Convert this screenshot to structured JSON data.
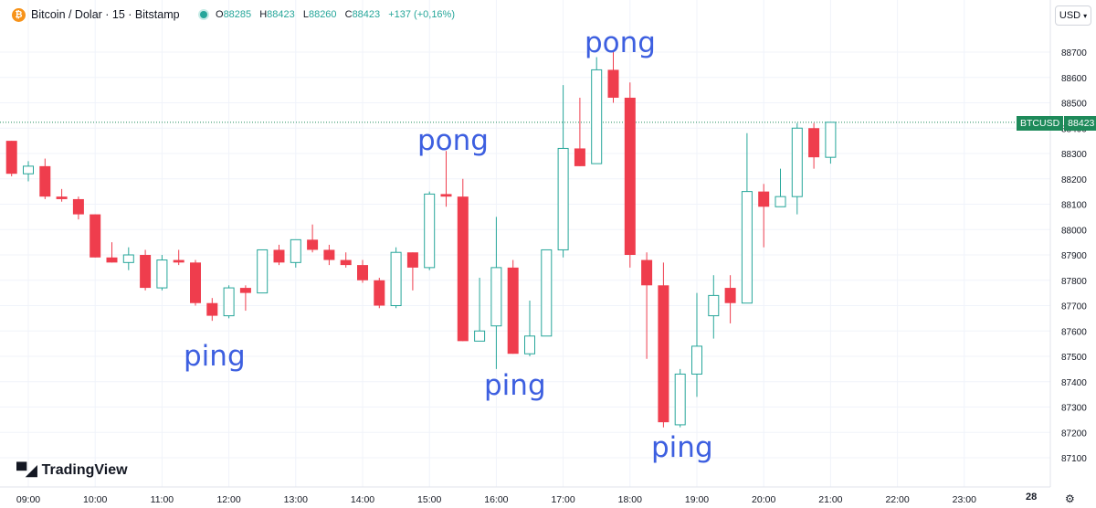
{
  "header": {
    "symbol": "Bitcoin / Dolar · 15 · Bitstamp",
    "logo_glyph": "₿",
    "ohlc": [
      {
        "key": "O",
        "value": "88285"
      },
      {
        "key": "H",
        "value": "88423"
      },
      {
        "key": "L",
        "value": "88260"
      },
      {
        "key": "C",
        "value": "88423"
      }
    ],
    "change": "+137 (+0,16%)"
  },
  "currency_button": "USD",
  "price_tag": {
    "symbol": "BTCUSD",
    "price": "88423"
  },
  "brand": "TradingView",
  "day_label": "28",
  "colors": {
    "up": "#26a69a",
    "down": "#ef3d4d",
    "annotation": "#3d5fe0",
    "price_line": "#1e8a5a"
  },
  "annotations": [
    {
      "text": "pong",
      "x": "15:15",
      "y": 88340
    },
    {
      "text": "pong",
      "x": "17:30",
      "y": 88900
    },
    {
      "text": "ping",
      "x": "11:45",
      "y": 87530
    },
    {
      "text": "ping",
      "x": "16:15",
      "y": 87420
    },
    {
      "text": "ping",
      "x": "18:30",
      "y": 87120
    }
  ],
  "chart_data": {
    "type": "candlestick",
    "title": "",
    "xlabel": "",
    "ylabel": "",
    "ylim": [
      87040,
      88800
    ],
    "y_ticks": [
      87100,
      87200,
      87300,
      87400,
      87500,
      87600,
      87700,
      87800,
      87900,
      88000,
      88100,
      88200,
      88300,
      88400,
      88500,
      88600,
      88700
    ],
    "x_ticks": [
      "09:00",
      "10:00",
      "11:00",
      "12:00",
      "13:00",
      "14:00",
      "15:00",
      "16:00",
      "17:00",
      "18:00",
      "19:00",
      "20:00",
      "21:00",
      "22:00",
      "23:00"
    ],
    "interval_minutes": 15,
    "current_price": 88423,
    "candles": [
      {
        "t": "08:45",
        "o": 88350,
        "h": 88350,
        "l": 88210,
        "c": 88220
      },
      {
        "t": "09:00",
        "o": 88220,
        "h": 88270,
        "l": 88190,
        "c": 88250
      },
      {
        "t": "09:15",
        "o": 88250,
        "h": 88280,
        "l": 88120,
        "c": 88130
      },
      {
        "t": "09:30",
        "o": 88130,
        "h": 88160,
        "l": 88110,
        "c": 88120
      },
      {
        "t": "09:45",
        "o": 88120,
        "h": 88130,
        "l": 88040,
        "c": 88060
      },
      {
        "t": "10:00",
        "o": 88060,
        "h": 88060,
        "l": 87890,
        "c": 87890
      },
      {
        "t": "10:15",
        "o": 87890,
        "h": 87950,
        "l": 87870,
        "c": 87870
      },
      {
        "t": "10:30",
        "o": 87870,
        "h": 87930,
        "l": 87840,
        "c": 87900
      },
      {
        "t": "10:45",
        "o": 87900,
        "h": 87920,
        "l": 87760,
        "c": 87770
      },
      {
        "t": "11:00",
        "o": 87770,
        "h": 87900,
        "l": 87760,
        "c": 87880
      },
      {
        "t": "11:15",
        "o": 87880,
        "h": 87920,
        "l": 87860,
        "c": 87870
      },
      {
        "t": "11:30",
        "o": 87870,
        "h": 87880,
        "l": 87700,
        "c": 87710
      },
      {
        "t": "11:45",
        "o": 87710,
        "h": 87730,
        "l": 87640,
        "c": 87660
      },
      {
        "t": "12:00",
        "o": 87660,
        "h": 87780,
        "l": 87650,
        "c": 87770
      },
      {
        "t": "12:15",
        "o": 87770,
        "h": 87780,
        "l": 87680,
        "c": 87750
      },
      {
        "t": "12:30",
        "o": 87750,
        "h": 87920,
        "l": 87750,
        "c": 87920
      },
      {
        "t": "12:45",
        "o": 87920,
        "h": 87940,
        "l": 87860,
        "c": 87870
      },
      {
        "t": "13:00",
        "o": 87870,
        "h": 87960,
        "l": 87850,
        "c": 87960
      },
      {
        "t": "13:15",
        "o": 87960,
        "h": 88020,
        "l": 87910,
        "c": 87920
      },
      {
        "t": "13:30",
        "o": 87920,
        "h": 87940,
        "l": 87860,
        "c": 87880
      },
      {
        "t": "13:45",
        "o": 87880,
        "h": 87910,
        "l": 87850,
        "c": 87860
      },
      {
        "t": "14:00",
        "o": 87860,
        "h": 87880,
        "l": 87790,
        "c": 87800
      },
      {
        "t": "14:15",
        "o": 87800,
        "h": 87810,
        "l": 87690,
        "c": 87700
      },
      {
        "t": "14:30",
        "o": 87700,
        "h": 87930,
        "l": 87690,
        "c": 87910
      },
      {
        "t": "14:45",
        "o": 87910,
        "h": 87910,
        "l": 87760,
        "c": 87850
      },
      {
        "t": "15:00",
        "o": 87850,
        "h": 88150,
        "l": 87840,
        "c": 88140
      },
      {
        "t": "15:15",
        "o": 88140,
        "h": 88310,
        "l": 88090,
        "c": 88130
      },
      {
        "t": "15:30",
        "o": 88130,
        "h": 88200,
        "l": 87560,
        "c": 87560
      },
      {
        "t": "15:45",
        "o": 87560,
        "h": 87810,
        "l": 87560,
        "c": 87600
      },
      {
        "t": "16:00",
        "o": 87620,
        "h": 88050,
        "l": 87450,
        "c": 87850
      },
      {
        "t": "16:15",
        "o": 87850,
        "h": 87880,
        "l": 87510,
        "c": 87510
      },
      {
        "t": "16:30",
        "o": 87510,
        "h": 87720,
        "l": 87500,
        "c": 87580
      },
      {
        "t": "16:45",
        "o": 87580,
        "h": 87920,
        "l": 87580,
        "c": 87920
      },
      {
        "t": "17:00",
        "o": 87920,
        "h": 88570,
        "l": 87890,
        "c": 88320
      },
      {
        "t": "17:15",
        "o": 88320,
        "h": 88520,
        "l": 88250,
        "c": 88250
      },
      {
        "t": "17:30",
        "o": 88260,
        "h": 88680,
        "l": 88260,
        "c": 88630
      },
      {
        "t": "17:45",
        "o": 88630,
        "h": 88700,
        "l": 88500,
        "c": 88520
      },
      {
        "t": "18:00",
        "o": 88520,
        "h": 88580,
        "l": 87850,
        "c": 87900
      },
      {
        "t": "18:15",
        "o": 87880,
        "h": 87910,
        "l": 87490,
        "c": 87780
      },
      {
        "t": "18:30",
        "o": 87780,
        "h": 87870,
        "l": 87220,
        "c": 87240
      },
      {
        "t": "18:45",
        "o": 87230,
        "h": 87450,
        "l": 87220,
        "c": 87430
      },
      {
        "t": "19:00",
        "o": 87430,
        "h": 87750,
        "l": 87340,
        "c": 87540
      },
      {
        "t": "19:15",
        "o": 87660,
        "h": 87820,
        "l": 87570,
        "c": 87740
      },
      {
        "t": "19:30",
        "o": 87770,
        "h": 87820,
        "l": 87630,
        "c": 87710
      },
      {
        "t": "19:45",
        "o": 87710,
        "h": 88380,
        "l": 87710,
        "c": 88150
      },
      {
        "t": "20:00",
        "o": 88150,
        "h": 88180,
        "l": 87930,
        "c": 88090
      },
      {
        "t": "20:15",
        "o": 88090,
        "h": 88240,
        "l": 88090,
        "c": 88130
      },
      {
        "t": "20:30",
        "o": 88130,
        "h": 88420,
        "l": 88060,
        "c": 88400
      },
      {
        "t": "20:45",
        "o": 88400,
        "h": 88420,
        "l": 88240,
        "c": 88285
      },
      {
        "t": "21:00",
        "o": 88285,
        "h": 88423,
        "l": 88260,
        "c": 88423
      }
    ]
  }
}
